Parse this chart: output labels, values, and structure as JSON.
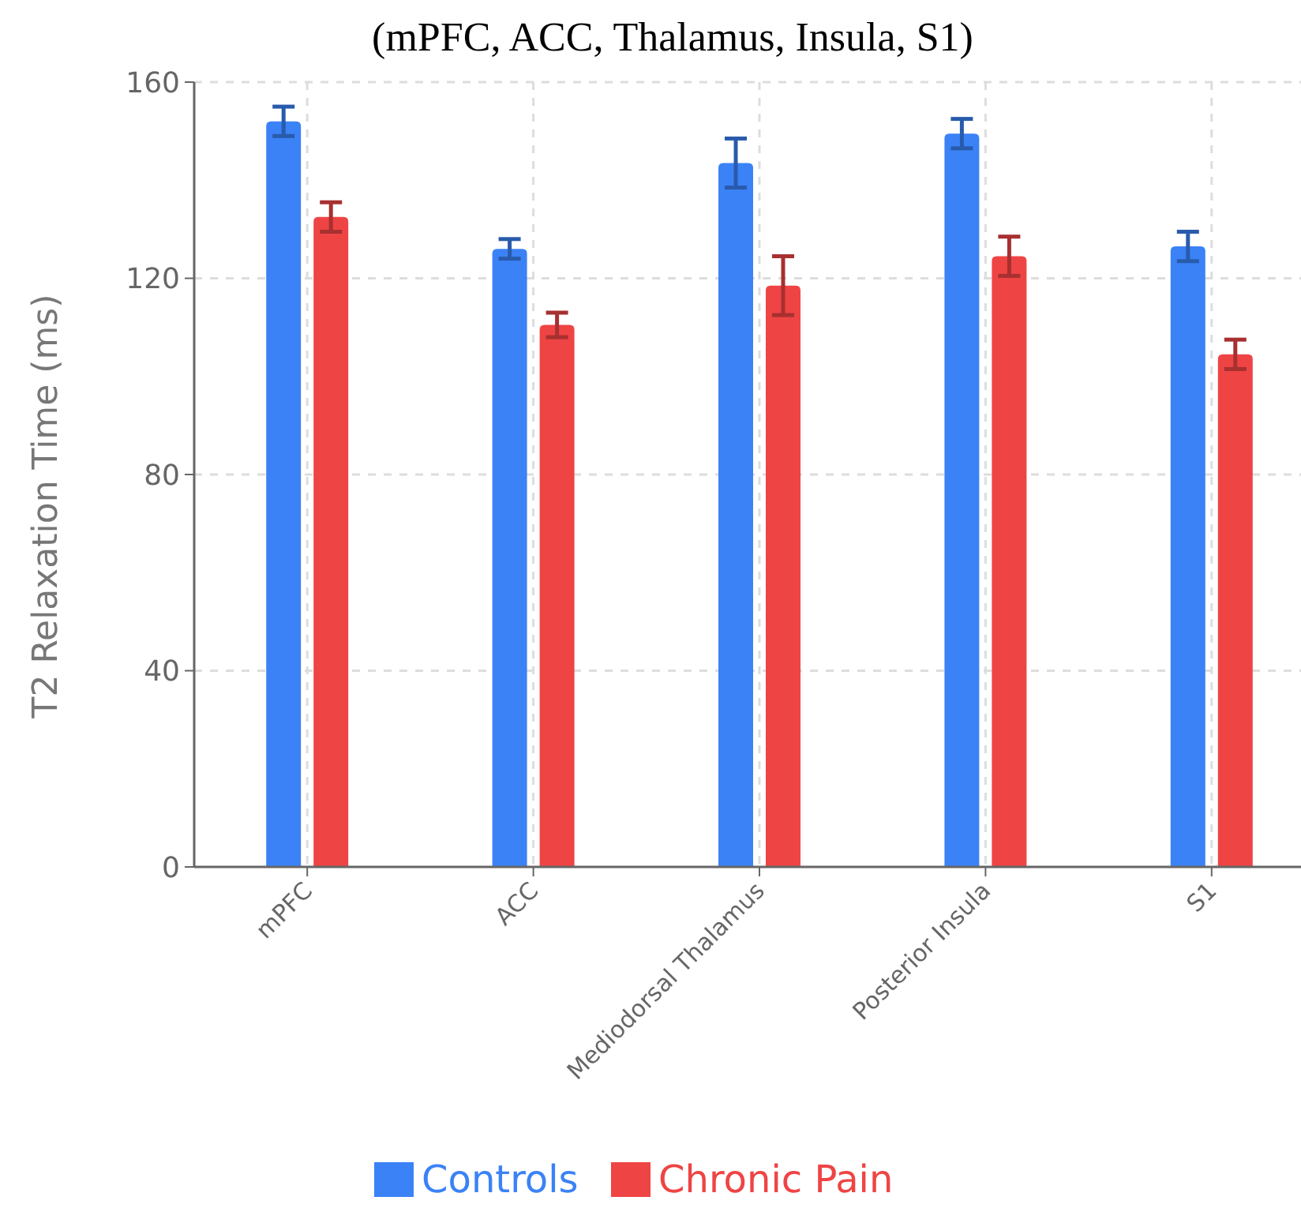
{
  "chart_data": {
    "type": "bar",
    "title": "(mPFC, ACC, Thalamus, Insula, S1)",
    "ylabel": "T2 Relaxation Time (ms)",
    "categories": [
      "mPFC",
      "ACC",
      "Mediodorsal Thalamus",
      "Posterior Insula",
      "S1"
    ],
    "series": [
      {
        "name": "Controls",
        "color": "#3b82f6",
        "values": [
          152,
          126,
          143.5,
          149.5,
          126.5
        ],
        "errors": [
          3,
          2,
          5,
          3,
          3
        ]
      },
      {
        "name": "Chronic Pain",
        "color": "#ef4444",
        "values": [
          132.5,
          110.5,
          118.5,
          124.5,
          104.5
        ],
        "errors": [
          3,
          2.5,
          6,
          4,
          3
        ]
      }
    ],
    "ylim": [
      0,
      160
    ],
    "yticks": [
      0,
      40,
      80,
      120,
      160
    ],
    "grid": true,
    "legend": "bottom"
  }
}
